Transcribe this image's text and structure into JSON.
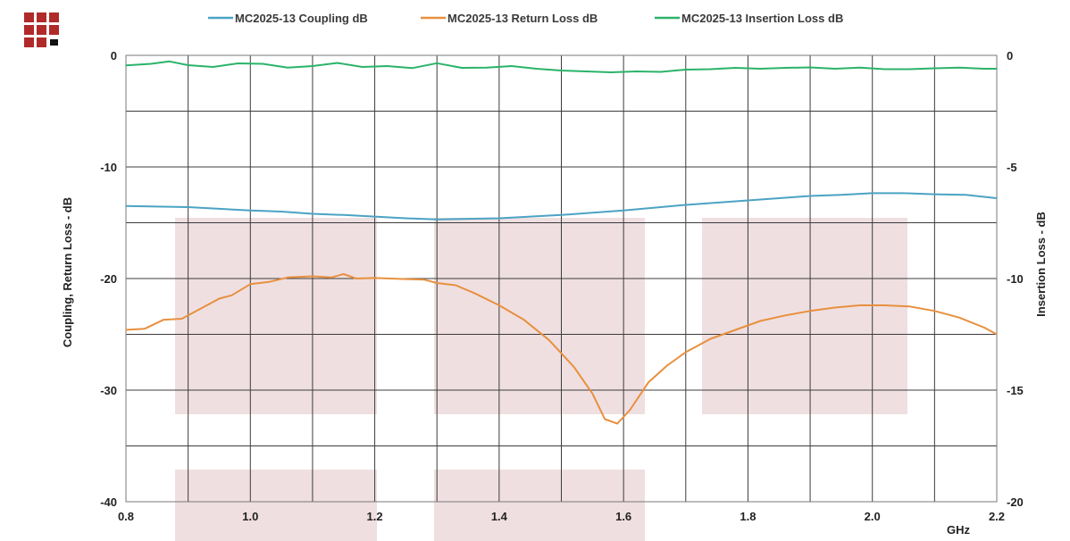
{
  "chart_data": {
    "type": "line",
    "title": "",
    "xlabel": "GHz",
    "ylabel": "Coupling, Return Loss - dB",
    "y2label": "Insertion Loss - dB",
    "xlim": [
      0.8,
      2.2
    ],
    "ylim": [
      -40,
      0
    ],
    "y2lim": [
      -20,
      0
    ],
    "x_ticks": [
      0.8,
      1.0,
      1.2,
      1.4,
      1.6,
      1.8,
      2.0,
      2.2
    ],
    "x_tick_labels": [
      "0.8",
      "1.0",
      "1.2",
      "1.4",
      "1.6",
      "1.8",
      "2.0",
      "2.2"
    ],
    "y_ticks": [
      0,
      -10,
      -20,
      -30,
      -40
    ],
    "y_tick_labels": [
      "0",
      "-10",
      "-20",
      "-30",
      "-40"
    ],
    "y2_ticks": [
      0,
      -5,
      -10,
      -15,
      -20
    ],
    "y2_tick_labels": [
      "0",
      "-5",
      "-10",
      "-15",
      "-20"
    ],
    "grid": true,
    "legend_position": "top",
    "series": [
      {
        "name": "MC2025-13 Coupling dB",
        "axis": "left",
        "color": "#4ba3c3",
        "points": [
          [
            0.8,
            -13.5
          ],
          [
            0.85,
            -13.55
          ],
          [
            0.9,
            -13.6
          ],
          [
            0.95,
            -13.75
          ],
          [
            1.0,
            -13.9
          ],
          [
            1.05,
            -14.0
          ],
          [
            1.1,
            -14.2
          ],
          [
            1.15,
            -14.3
          ],
          [
            1.2,
            -14.45
          ],
          [
            1.25,
            -14.6
          ],
          [
            1.3,
            -14.7
          ],
          [
            1.35,
            -14.65
          ],
          [
            1.4,
            -14.6
          ],
          [
            1.45,
            -14.45
          ],
          [
            1.5,
            -14.3
          ],
          [
            1.55,
            -14.1
          ],
          [
            1.6,
            -13.9
          ],
          [
            1.65,
            -13.65
          ],
          [
            1.7,
            -13.4
          ],
          [
            1.75,
            -13.2
          ],
          [
            1.8,
            -13.0
          ],
          [
            1.85,
            -12.8
          ],
          [
            1.9,
            -12.6
          ],
          [
            1.95,
            -12.5
          ],
          [
            2.0,
            -12.35
          ],
          [
            2.05,
            -12.35
          ],
          [
            2.1,
            -12.45
          ],
          [
            2.15,
            -12.5
          ],
          [
            2.2,
            -12.8
          ]
        ]
      },
      {
        "name": "MC2025-13 Return Loss dB",
        "axis": "left",
        "color": "#e8903e",
        "points": [
          [
            0.8,
            -24.6
          ],
          [
            0.83,
            -24.5
          ],
          [
            0.86,
            -23.7
          ],
          [
            0.89,
            -23.6
          ],
          [
            0.92,
            -22.7
          ],
          [
            0.95,
            -21.8
          ],
          [
            0.97,
            -21.5
          ],
          [
            1.0,
            -20.5
          ],
          [
            1.03,
            -20.3
          ],
          [
            1.06,
            -19.9
          ],
          [
            1.1,
            -19.8
          ],
          [
            1.13,
            -19.9
          ],
          [
            1.15,
            -19.6
          ],
          [
            1.17,
            -20.0
          ],
          [
            1.2,
            -19.95
          ],
          [
            1.25,
            -20.05
          ],
          [
            1.28,
            -20.1
          ],
          [
            1.3,
            -20.4
          ],
          [
            1.33,
            -20.6
          ],
          [
            1.36,
            -21.3
          ],
          [
            1.4,
            -22.4
          ],
          [
            1.44,
            -23.7
          ],
          [
            1.48,
            -25.5
          ],
          [
            1.52,
            -27.9
          ],
          [
            1.55,
            -30.3
          ],
          [
            1.57,
            -32.6
          ],
          [
            1.59,
            -33.0
          ],
          [
            1.61,
            -31.8
          ],
          [
            1.64,
            -29.3
          ],
          [
            1.67,
            -27.8
          ],
          [
            1.7,
            -26.6
          ],
          [
            1.74,
            -25.4
          ],
          [
            1.78,
            -24.6
          ],
          [
            1.82,
            -23.8
          ],
          [
            1.86,
            -23.3
          ],
          [
            1.9,
            -22.9
          ],
          [
            1.94,
            -22.6
          ],
          [
            1.98,
            -22.4
          ],
          [
            2.02,
            -22.4
          ],
          [
            2.06,
            -22.5
          ],
          [
            2.1,
            -22.9
          ],
          [
            2.14,
            -23.5
          ],
          [
            2.18,
            -24.4
          ],
          [
            2.2,
            -25.0
          ]
        ]
      },
      {
        "name": "MC2025-13 Insertion Loss dB",
        "axis": "right",
        "color": "#2bb36a",
        "points": [
          [
            0.8,
            -0.45
          ],
          [
            0.84,
            -0.38
          ],
          [
            0.87,
            -0.27
          ],
          [
            0.9,
            -0.44
          ],
          [
            0.94,
            -0.52
          ],
          [
            0.98,
            -0.36
          ],
          [
            1.02,
            -0.38
          ],
          [
            1.06,
            -0.55
          ],
          [
            1.1,
            -0.48
          ],
          [
            1.14,
            -0.34
          ],
          [
            1.18,
            -0.52
          ],
          [
            1.22,
            -0.48
          ],
          [
            1.26,
            -0.57
          ],
          [
            1.3,
            -0.35
          ],
          [
            1.34,
            -0.56
          ],
          [
            1.38,
            -0.55
          ],
          [
            1.42,
            -0.48
          ],
          [
            1.46,
            -0.6
          ],
          [
            1.5,
            -0.68
          ],
          [
            1.54,
            -0.72
          ],
          [
            1.58,
            -0.76
          ],
          [
            1.62,
            -0.72
          ],
          [
            1.66,
            -0.74
          ],
          [
            1.7,
            -0.64
          ],
          [
            1.74,
            -0.62
          ],
          [
            1.78,
            -0.56
          ],
          [
            1.82,
            -0.6
          ],
          [
            1.86,
            -0.56
          ],
          [
            1.9,
            -0.54
          ],
          [
            1.94,
            -0.6
          ],
          [
            1.98,
            -0.55
          ],
          [
            2.02,
            -0.62
          ],
          [
            2.06,
            -0.62
          ],
          [
            2.1,
            -0.58
          ],
          [
            2.14,
            -0.55
          ],
          [
            2.18,
            -0.6
          ],
          [
            2.2,
            -0.6
          ]
        ]
      }
    ]
  },
  "logo": {
    "name": "company-logo",
    "primary_color": "#b02a2a",
    "accent_color": "#111111"
  },
  "watermark_color": "#efdfe1"
}
